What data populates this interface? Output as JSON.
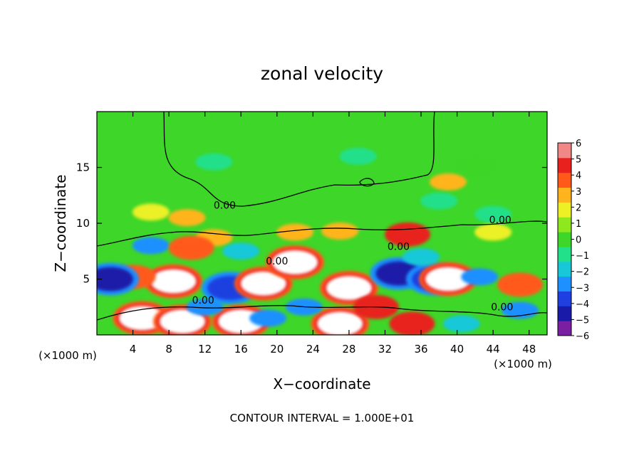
{
  "chart_data": {
    "type": "heatmap",
    "title": "zonal velocity",
    "xlabel": "X−coordinate",
    "ylabel": "Z−coordinate",
    "x_unit_left": "(×1000 m)",
    "x_unit_right": "(×1000 m)",
    "footer": "CONTOUR INTERVAL = 1.000E+01",
    "xlim": [
      0,
      50
    ],
    "ylim": [
      0,
      20
    ],
    "x_ticks": [
      "4",
      "8",
      "12",
      "16",
      "20",
      "24",
      "28",
      "32",
      "36",
      "40",
      "44",
      "48"
    ],
    "x_tick_values": [
      4,
      8,
      12,
      16,
      20,
      24,
      28,
      32,
      36,
      40,
      44,
      48
    ],
    "y_ticks": [
      "5",
      "10",
      "15"
    ],
    "y_tick_values": [
      5,
      10,
      15
    ],
    "contour_labels": [
      {
        "text": "0.00",
        "x": 14.2,
        "y": 11.3
      },
      {
        "text": "0.00",
        "x": 44.8,
        "y": 10.0
      },
      {
        "text": "0.00",
        "x": 33.5,
        "y": 7.6
      },
      {
        "text": "0.00",
        "x": 20.0,
        "y": 6.3
      },
      {
        "text": "0.00",
        "x": 11.8,
        "y": 2.8
      },
      {
        "text": "0.00",
        "x": 45.0,
        "y": 2.2
      }
    ],
    "colorbar": {
      "ticks": [
        "6",
        "5",
        "4",
        "3",
        "2",
        "1",
        "0",
        "−1",
        "−2",
        "−3",
        "−4",
        "−5",
        "−6"
      ],
      "range": [
        -6,
        6
      ],
      "colors": [
        "#7b1fa2",
        "#1a1aa8",
        "#1f3fe0",
        "#1e90ff",
        "#19c8d8",
        "#22e08a",
        "#3ed628",
        "#8fe81e",
        "#ecf025",
        "#ffb41e",
        "#ff5a1a",
        "#e8201e",
        "#f08888"
      ]
    },
    "features": [
      {
        "x": 8.5,
        "y": 4.8,
        "value": 7
      },
      {
        "x": 4.0,
        "y": 5.2,
        "value": 4
      },
      {
        "x": 14.8,
        "y": 4.2,
        "value": -4.5
      },
      {
        "x": 18.5,
        "y": 4.6,
        "value": 7
      },
      {
        "x": 22.0,
        "y": 6.5,
        "value": 7
      },
      {
        "x": 28.0,
        "y": 4.2,
        "value": 7
      },
      {
        "x": 33.5,
        "y": 5.5,
        "value": -5
      },
      {
        "x": 37.5,
        "y": 5.0,
        "value": -4
      },
      {
        "x": 39.0,
        "y": 5.0,
        "value": 7
      },
      {
        "x": 42.5,
        "y": 5.2,
        "value": -3.5
      },
      {
        "x": 47.0,
        "y": 4.5,
        "value": 4
      },
      {
        "x": 1.5,
        "y": 5.0,
        "value": -5
      },
      {
        "x": 5.0,
        "y": 1.5,
        "value": 7
      },
      {
        "x": 9.5,
        "y": 1.2,
        "value": 7
      },
      {
        "x": 16.0,
        "y": 1.2,
        "value": 7
      },
      {
        "x": 27.0,
        "y": 1.0,
        "value": 7
      },
      {
        "x": 35.0,
        "y": 1.0,
        "value": 5
      },
      {
        "x": 40.5,
        "y": 1.0,
        "value": -2
      },
      {
        "x": 47.0,
        "y": 2.2,
        "value": -3
      },
      {
        "x": 12.0,
        "y": 2.5,
        "value": -3
      },
      {
        "x": 19.0,
        "y": 1.5,
        "value": -3
      },
      {
        "x": 23.0,
        "y": 2.5,
        "value": -3
      },
      {
        "x": 31.0,
        "y": 2.5,
        "value": 5
      },
      {
        "x": 36.0,
        "y": 7.0,
        "value": -2
      },
      {
        "x": 34.5,
        "y": 9.0,
        "value": 4.5
      },
      {
        "x": 27.0,
        "y": 9.3,
        "value": 3
      },
      {
        "x": 22.0,
        "y": 9.2,
        "value": 2.5
      },
      {
        "x": 10.0,
        "y": 10.5,
        "value": 3
      },
      {
        "x": 13.0,
        "y": 8.7,
        "value": 3
      },
      {
        "x": 6.0,
        "y": 8.0,
        "value": -3
      },
      {
        "x": 10.5,
        "y": 7.8,
        "value": 4
      },
      {
        "x": 16.0,
        "y": 7.5,
        "value": -2.5
      },
      {
        "x": 39.0,
        "y": 13.7,
        "value": 3
      },
      {
        "x": 38.0,
        "y": 12.0,
        "value": -1.5
      },
      {
        "x": 13.0,
        "y": 15.5,
        "value": -0.8
      },
      {
        "x": 29.0,
        "y": 16.0,
        "value": -1.5
      },
      {
        "x": 42.0,
        "y": 15.0,
        "value": -0.5
      },
      {
        "x": 44.0,
        "y": 10.8,
        "value": -1.5
      },
      {
        "x": 6.0,
        "y": 11.0,
        "value": 1.6
      },
      {
        "x": 44.0,
        "y": 9.2,
        "value": 1.5
      }
    ]
  }
}
